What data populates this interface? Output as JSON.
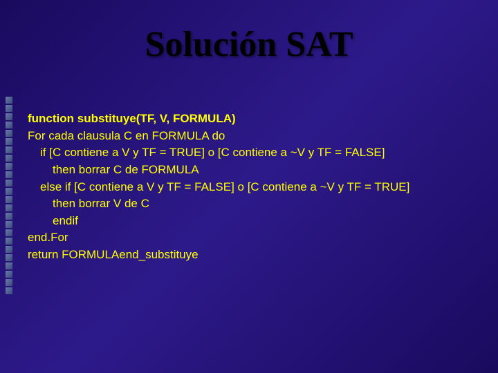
{
  "slide": {
    "title": "Solución SAT",
    "background_gradient": [
      "#1a0a5e",
      "#2d1a8a",
      "#1a0a5e"
    ],
    "title_color": "#000000",
    "title_fontsize": 52,
    "title_font": "Times New Roman",
    "text_color": "#ffff00",
    "text_fontsize": 17,
    "bullet_color": "#5a6a9a",
    "bullet_count": 24,
    "lines": [
      {
        "text": "function substituye(TF, V, FORMULA)",
        "indent": 0,
        "bold": true
      },
      {
        "text": "For cada clausula C en FORMULA do",
        "indent": 0,
        "bold": false
      },
      {
        "text": "if [C contiene a V y TF = TRUE] o [C contiene a ~V y TF = FALSE]",
        "indent": 1,
        "bold": false
      },
      {
        "text": "then borrar C de FORMULA",
        "indent": 2,
        "bold": false
      },
      {
        "text": "else if [C contiene a V y TF = FALSE] o [C contiene a ~V y TF = TRUE]",
        "indent": 1,
        "bold": false
      },
      {
        "text": "then borrar V de C",
        "indent": 2,
        "bold": false
      },
      {
        "text": "endif",
        "indent": 2,
        "bold": false
      },
      {
        "text": "end.For",
        "indent": 0,
        "bold": false
      },
      {
        "text": "return FORMULAend_substituye",
        "indent": 0,
        "bold": false
      }
    ]
  }
}
